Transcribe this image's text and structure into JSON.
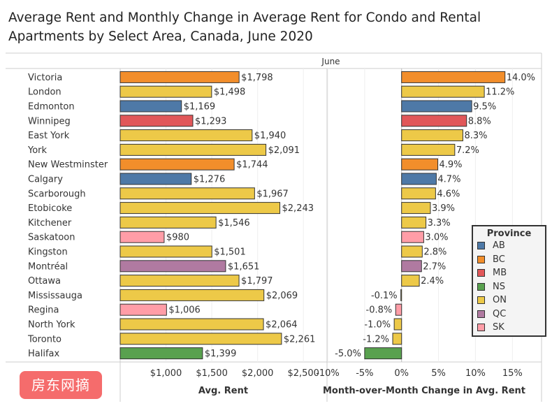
{
  "title_lines": [
    "Average Rent and Monthly Change in Average Rent for Condo and Rental",
    "Apartments by Select Area, Canada, June 2020"
  ],
  "watermark": "房东网摘",
  "colors": {
    "AB": "#4e79a7",
    "BC": "#f28e2b",
    "MB": "#e15759",
    "NS": "#59a14f",
    "ON": "#edc948",
    "QC": "#b07aa1",
    "SK": "#ff9da7"
  },
  "legend": {
    "title": "Province",
    "items": [
      "AB",
      "BC",
      "MB",
      "NS",
      "ON",
      "QC",
      "SK"
    ]
  },
  "chart_data": {
    "type": "bar",
    "orientation": "horizontal",
    "column_header": "June",
    "categories": [
      "Victoria",
      "London",
      "Edmonton",
      "Winnipeg",
      "East York",
      "York",
      "New Westminster",
      "Calgary",
      "Scarborough",
      "Etobicoke",
      "Kitchener",
      "Saskatoon",
      "Kingston",
      "Montréal",
      "Ottawa",
      "Mississauga",
      "Regina",
      "North York",
      "Toronto",
      "Halifax"
    ],
    "province": [
      "BC",
      "ON",
      "AB",
      "MB",
      "ON",
      "ON",
      "BC",
      "AB",
      "ON",
      "ON",
      "ON",
      "SK",
      "ON",
      "QC",
      "ON",
      "ON",
      "SK",
      "ON",
      "ON",
      "NS"
    ],
    "series": [
      {
        "name": "Avg. Rent",
        "values": [
          1798,
          1498,
          1169,
          1293,
          1940,
          2091,
          1744,
          1276,
          1967,
          2243,
          1546,
          980,
          1501,
          1651,
          1797,
          2069,
          1006,
          2064,
          2261,
          1399
        ],
        "labels": [
          "$1,798",
          "$1,498",
          "$1,169",
          "$1,293",
          "$1,940",
          "$2,091",
          "$1,744",
          "$1,276",
          "$1,967",
          "$2,243",
          "$1,546",
          "$980",
          "$1,501",
          "$1,651",
          "$1,797",
          "$2,069",
          "$1,006",
          "$2,064",
          "$2,261",
          "$1,399"
        ],
        "xlim": [
          500,
          2750
        ],
        "ticks": [
          1000,
          1500,
          2000,
          2500
        ],
        "tick_labels": [
          "$1,000",
          "$1,500",
          "$2,000",
          "$2,500"
        ],
        "xlabel": "Avg. Rent"
      },
      {
        "name": "Month-over-Month Change in Avg. Rent",
        "values": [
          14.0,
          11.2,
          9.5,
          8.8,
          8.3,
          7.2,
          4.9,
          4.7,
          4.6,
          3.9,
          3.3,
          3.0,
          2.8,
          2.7,
          2.4,
          -0.1,
          -0.8,
          -1.0,
          -1.2,
          -5.0
        ],
        "labels": [
          "14.0%",
          "11.2%",
          "9.5%",
          "8.8%",
          "8.3%",
          "7.2%",
          "4.9%",
          "4.7%",
          "4.6%",
          "3.9%",
          "3.3%",
          "3.0%",
          "2.8%",
          "2.7%",
          "2.4%",
          "-0.1%",
          "-0.8%",
          "-1.0%",
          "-1.2%",
          "-5.0%"
        ],
        "xlim": [
          -10,
          18
        ],
        "ticks": [
          -10,
          -5,
          0,
          5,
          10,
          15
        ],
        "tick_labels": [
          "-10%",
          "-5%",
          "0%",
          "5%",
          "10%",
          "15%"
        ],
        "xlabel": "Month-over-Month Change in Avg. Rent"
      }
    ]
  }
}
